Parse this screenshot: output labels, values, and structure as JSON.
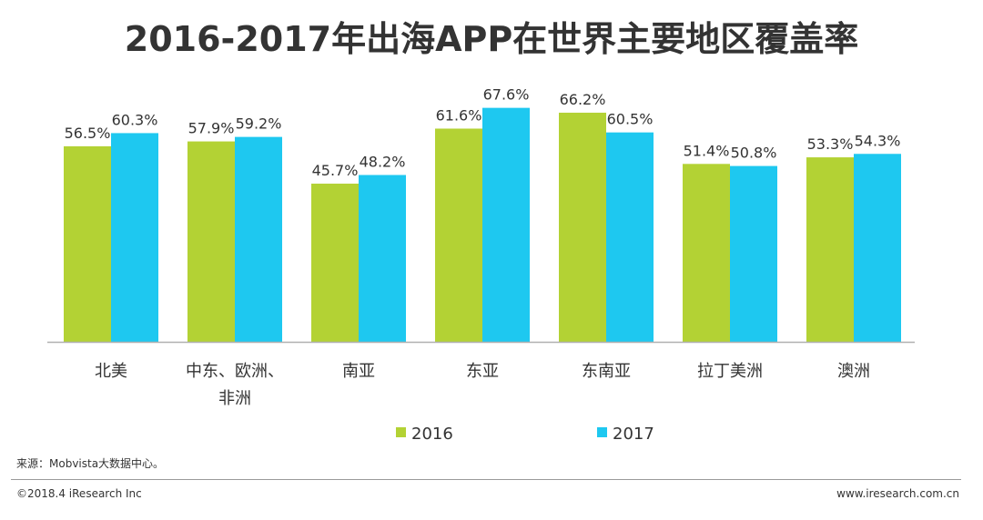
{
  "page": {
    "title": "2016-2017年出海APP在世界主要地区覆盖率",
    "source": "来源：Mobvista大数据中心。",
    "copyright": "©2018.4 iResearch Inc",
    "website": "www.iresearch.com.cn"
  },
  "chart_data": {
    "type": "bar",
    "title": "2016-2017年出海APP在世界主要地区覆盖率",
    "categories": [
      [
        "北美"
      ],
      [
        "中东、欧洲、",
        "非洲"
      ],
      [
        "南亚"
      ],
      [
        "东亚"
      ],
      [
        "东南亚"
      ],
      [
        "拉丁美洲"
      ],
      [
        "澳洲"
      ]
    ],
    "series": [
      {
        "name": "2016",
        "color": "#b3d234",
        "values": [
          56.5,
          57.9,
          45.7,
          61.6,
          66.2,
          51.4,
          53.3
        ],
        "labels": [
          "56.5%",
          "57.9%",
          "45.7%",
          "61.6%",
          "66.2%",
          "51.4%",
          "53.3%"
        ]
      },
      {
        "name": "2017",
        "color": "#1ec8f0",
        "values": [
          60.3,
          59.2,
          48.2,
          67.6,
          60.5,
          50.8,
          54.3
        ],
        "labels": [
          "60.3%",
          "59.2%",
          "48.2%",
          "67.6%",
          "60.5%",
          "50.8%",
          "54.3%"
        ]
      }
    ],
    "ylim": [
      0,
      83
    ],
    "grid": false,
    "legend_position": "bottom",
    "axis_color": "#b0b0b0"
  }
}
